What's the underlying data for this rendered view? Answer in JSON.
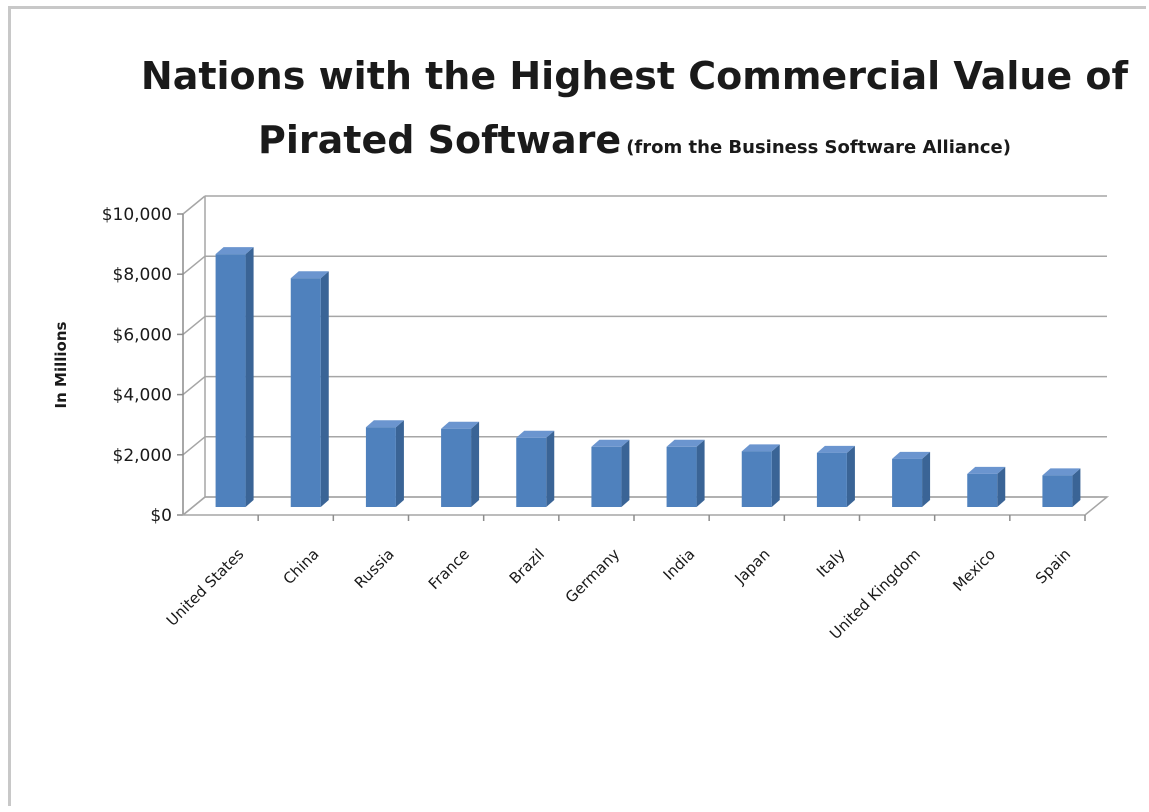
{
  "chart_data": {
    "type": "bar",
    "title": "Nations with the Highest Commercial Value of Pirated Software",
    "title_line1": "Nations with the Highest Commercial Value of",
    "title_line2": "Pirated Software",
    "subtitle": "(from the Business Software Alliance)",
    "xlabel": "",
    "ylabel": "In Millions",
    "ylim": [
      0,
      10000
    ],
    "yticks": [
      "$0",
      "$2,000",
      "$4,000",
      "$6,000",
      "$8,000",
      "$10,000"
    ],
    "categories": [
      "United States",
      "China",
      "Russia",
      "France",
      "Brazil",
      "Germany",
      "India",
      "Japan",
      "Italy",
      "United Kingdom",
      "Mexico",
      "Spain"
    ],
    "values": [
      8400,
      7600,
      2650,
      2600,
      2300,
      2000,
      2000,
      1850,
      1800,
      1600,
      1100,
      1050
    ],
    "grid": true,
    "legend": "none",
    "bar_color": "#4f81bd"
  }
}
